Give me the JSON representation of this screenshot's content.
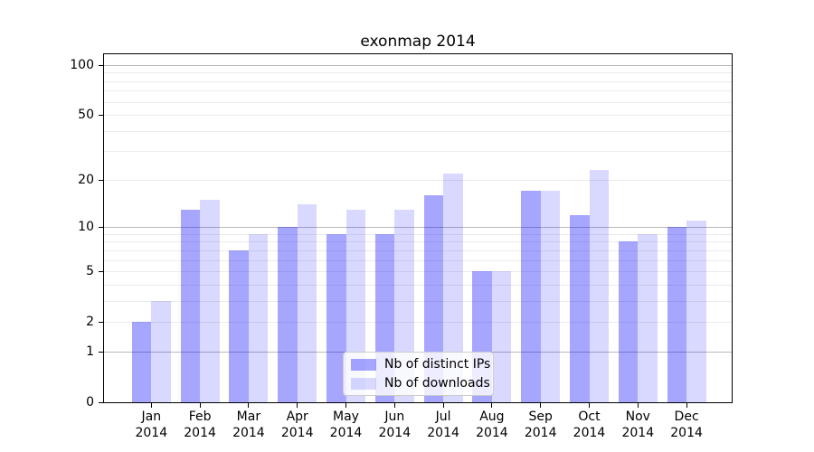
{
  "title": "exonmap 2014",
  "chart_data": {
    "type": "bar",
    "title": "exonmap 2014",
    "xlabel": "",
    "ylabel": "",
    "x": {
      "months": [
        "Jan",
        "Feb",
        "Mar",
        "Apr",
        "May",
        "Jun",
        "Jul",
        "Aug",
        "Sep",
        "Oct",
        "Nov",
        "Dec"
      ],
      "year": "2014"
    },
    "series": [
      {
        "name": "Nb of distinct IPs",
        "color": "rgba(0,0,255,0.35)",
        "values": [
          2,
          13,
          7,
          10,
          9,
          9,
          16,
          5,
          17,
          12,
          8,
          10
        ]
      },
      {
        "name": "Nb of downloads",
        "color": "rgba(0,0,255,0.15)",
        "values": [
          3,
          15,
          9,
          14,
          13,
          13,
          22,
          5,
          17,
          23,
          9,
          11
        ]
      }
    ],
    "y_axis": {
      "scale": "log1p",
      "ticks": [
        0,
        1,
        2,
        5,
        10,
        20,
        50,
        100
      ],
      "major_gridlines": [
        1,
        10,
        100
      ],
      "minor_gridlines": [
        2,
        3,
        4,
        5,
        6,
        7,
        8,
        9,
        20,
        30,
        40,
        50,
        60,
        70,
        80,
        90
      ],
      "max": 116
    },
    "legend_position": "lower center",
    "grid": true
  }
}
